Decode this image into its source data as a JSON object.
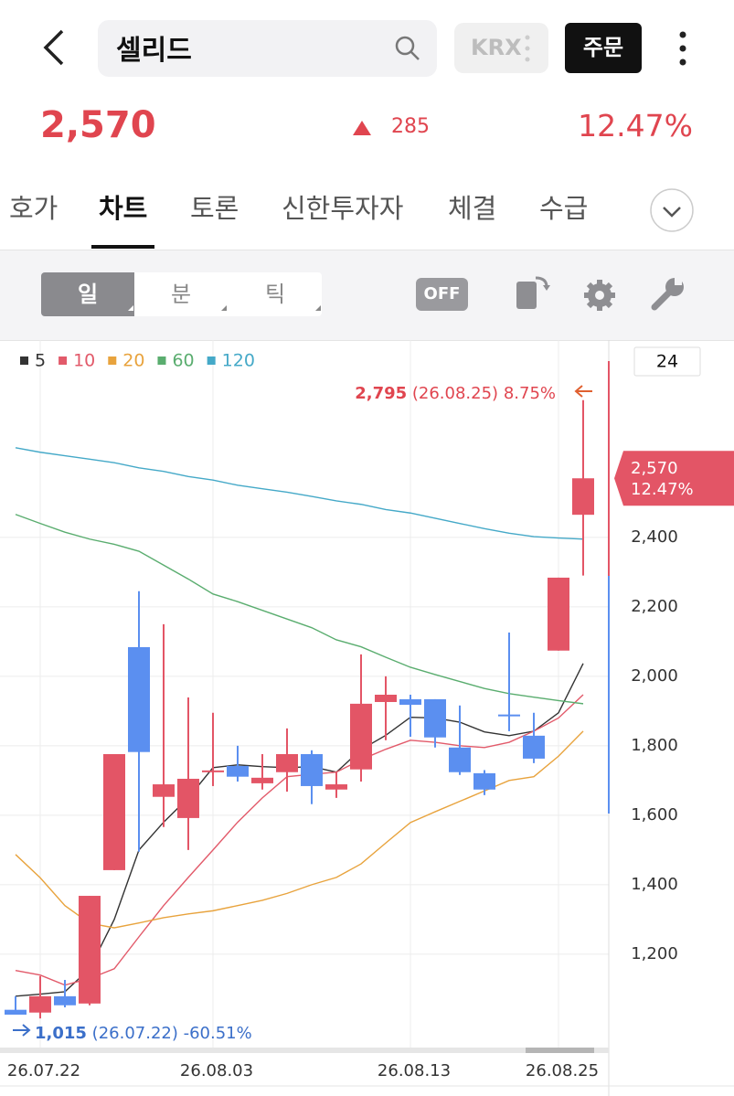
{
  "header": {
    "search": "셀리드",
    "exchange": "KRX",
    "order_button": "주문"
  },
  "price": {
    "current": "2,570",
    "change": "285",
    "change_rate": "12.47%"
  },
  "tabs": [
    "호가",
    "차트",
    "토론",
    "신한투자자",
    "체결",
    "수급"
  ],
  "active_tab": 1,
  "toolbar": {
    "periods": [
      "일",
      "분",
      "틱"
    ],
    "toggle": "OFF"
  },
  "chart_data": {
    "type": "candlestick",
    "categories": [
      null,
      "26.07.22",
      null,
      null,
      null,
      null,
      null,
      null,
      "26.08.03",
      null,
      null,
      null,
      null,
      null,
      null,
      null,
      "26.08.13",
      null,
      null,
      null,
      null,
      null,
      "26.08.25",
      null
    ],
    "open": [
      1040,
      1032,
      1079,
      1058,
      1442,
      2084,
      1653,
      1592,
      1726,
      1742,
      1692,
      1724,
      1776,
      1674,
      1732,
      1926,
      1934,
      1934,
      1795,
      1721,
      1890,
      1829,
      2074,
      2465
    ],
    "high": [
      1079,
      1137,
      1126,
      1368,
      1776,
      2245,
      2150,
      1939,
      1895,
      1800,
      1776,
      1850,
      1787,
      1726,
      2063,
      2000,
      1947,
      1934,
      1916,
      1730,
      2126,
      1895,
      2284,
      2795
    ],
    "low": [
      1026,
      1015,
      1047,
      1053,
      1442,
      1495,
      1566,
      1500,
      1684,
      1697,
      1674,
      1668,
      1632,
      1650,
      1697,
      1816,
      1826,
      1795,
      1716,
      1658,
      1842,
      1750,
      2074,
      2290
    ],
    "close": [
      1026,
      1079,
      1053,
      1368,
      1776,
      1782,
      1689,
      1705,
      1729,
      1711,
      1708,
      1776,
      1684,
      1689,
      1921,
      1947,
      1918,
      1824,
      1724,
      1674,
      1887,
      1763,
      2284,
      2570
    ],
    "up_color": "#e35566",
    "down_color": "#5b8ff0",
    "series": [
      {
        "name": "5",
        "color": "#333333",
        "values": [
          1079,
          1085,
          1092,
          1158,
          1300,
          1500,
          1580,
          1650,
          1737,
          1745,
          1740,
          1737,
          1740,
          1724,
          1789,
          1830,
          1882,
          1880,
          1868,
          1840,
          1829,
          1842,
          1895,
          2037
        ]
      },
      {
        "name": "10",
        "color": "#e25a6a",
        "values": [
          1153,
          1140,
          1111,
          1130,
          1158,
          1250,
          1340,
          1421,
          1500,
          1580,
          1650,
          1711,
          1718,
          1724,
          1760,
          1790,
          1816,
          1810,
          1800,
          1795,
          1810,
          1842,
          1880,
          1947
        ]
      },
      {
        "name": "20",
        "color": "#e8a33d",
        "values": [
          1487,
          1420,
          1340,
          1289,
          1276,
          1290,
          1305,
          1316,
          1325,
          1340,
          1355,
          1375,
          1400,
          1421,
          1460,
          1520,
          1579,
          1610,
          1640,
          1670,
          1700,
          1711,
          1770,
          1842
        ]
      },
      {
        "name": "60",
        "color": "#5aad6f",
        "values": [
          2466,
          2440,
          2415,
          2395,
          2380,
          2360,
          2320,
          2280,
          2237,
          2215,
          2190,
          2165,
          2140,
          2105,
          2085,
          2055,
          2026,
          2005,
          1985,
          1965,
          1950,
          1940,
          1930,
          1921
        ]
      },
      {
        "name": "120",
        "color": "#45a9c8",
        "values": [
          2658,
          2645,
          2635,
          2625,
          2615,
          2600,
          2590,
          2575,
          2565,
          2550,
          2540,
          2530,
          2518,
          2505,
          2495,
          2480,
          2470,
          2455,
          2440,
          2425,
          2412,
          2402,
          2398,
          2395
        ]
      }
    ],
    "ylim": [
      926,
      2968
    ],
    "yticks": [
      {
        "value": 1200,
        "label": "1,200"
      },
      {
        "value": 1400,
        "label": "1,400"
      },
      {
        "value": 1600,
        "label": "1,600"
      },
      {
        "value": 1800,
        "label": "1,800"
      },
      {
        "value": 2000,
        "label": "2,000"
      },
      {
        "value": 2200,
        "label": "2,200"
      },
      {
        "value": 2400,
        "label": "2,400"
      }
    ],
    "grid": true,
    "visible_count": 24,
    "max_label": {
      "price": "2,795",
      "date": "(26.08.25)",
      "rate": "8.75%"
    },
    "min_label": {
      "price": "1,015",
      "date": "(26.07.22)",
      "rate": "-60.51%"
    }
  }
}
